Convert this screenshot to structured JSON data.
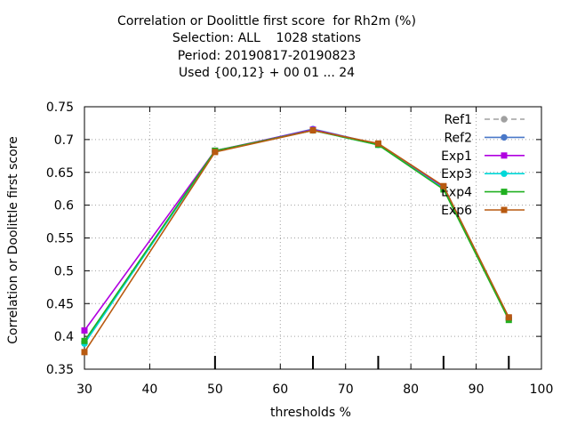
{
  "chart_data": {
    "type": "line",
    "title_lines": [
      "Correlation or Doolittle first score  for Rh2m (%)",
      "Selection: ALL    1028 stations",
      "Period: 20190817-20190823",
      "Used {00,12} + 00 01 ... 24"
    ],
    "xlabel": "thresholds %",
    "ylabel": "Correlation or Doolittle first score",
    "xlim": [
      30,
      100
    ],
    "ylim": [
      0.35,
      0.75
    ],
    "xticks": [
      30,
      40,
      50,
      60,
      70,
      80,
      90,
      100
    ],
    "xtick_labels": [
      "30",
      "40",
      "50",
      "60",
      "70",
      "80",
      "90",
      "100"
    ],
    "yticks": [
      0.35,
      0.4,
      0.45,
      0.5,
      0.55,
      0.6,
      0.65,
      0.7,
      0.75
    ],
    "ytick_labels": [
      "0.35",
      "0.4",
      "0.45",
      "0.5",
      "0.55",
      "0.6",
      "0.65",
      "0.7",
      "0.75"
    ],
    "threshold_marks": [
      50,
      65,
      75,
      85,
      95
    ],
    "grid": true,
    "legend_position": "top-right",
    "series": [
      {
        "name": "Ref1",
        "color": "#a0a0a0",
        "dashed": true,
        "marker": "circle",
        "x": [
          30,
          50,
          65,
          75,
          85,
          95
        ],
        "y": [
          0.392,
          0.682,
          0.715,
          0.693,
          0.627,
          0.427
        ]
      },
      {
        "name": "Ref2",
        "color": "#4a78c8",
        "dashed": false,
        "marker": "circle",
        "x": [
          30,
          50,
          65,
          75,
          85,
          95
        ],
        "y": [
          0.392,
          0.682,
          0.716,
          0.693,
          0.627,
          0.428
        ]
      },
      {
        "name": "Exp1",
        "color": "#b000e0",
        "dashed": false,
        "marker": "square",
        "x": [
          30,
          50,
          65,
          75,
          85,
          95
        ],
        "y": [
          0.409,
          0.683,
          0.715,
          0.693,
          0.628,
          0.428
        ]
      },
      {
        "name": "Exp3",
        "color": "#00d8d8",
        "dashed": false,
        "marker": "circle",
        "x": [
          30,
          50,
          65,
          75,
          85,
          95
        ],
        "y": [
          0.389,
          0.682,
          0.714,
          0.692,
          0.625,
          0.426
        ]
      },
      {
        "name": "Exp4",
        "color": "#20b020",
        "dashed": false,
        "marker": "square",
        "x": [
          30,
          50,
          65,
          75,
          85,
          95
        ],
        "y": [
          0.393,
          0.683,
          0.714,
          0.692,
          0.624,
          0.425
        ]
      },
      {
        "name": "Exp6",
        "color": "#b85a10",
        "dashed": false,
        "marker": "square",
        "x": [
          30,
          50,
          65,
          75,
          85,
          95
        ],
        "y": [
          0.376,
          0.681,
          0.714,
          0.694,
          0.629,
          0.429
        ]
      }
    ]
  }
}
